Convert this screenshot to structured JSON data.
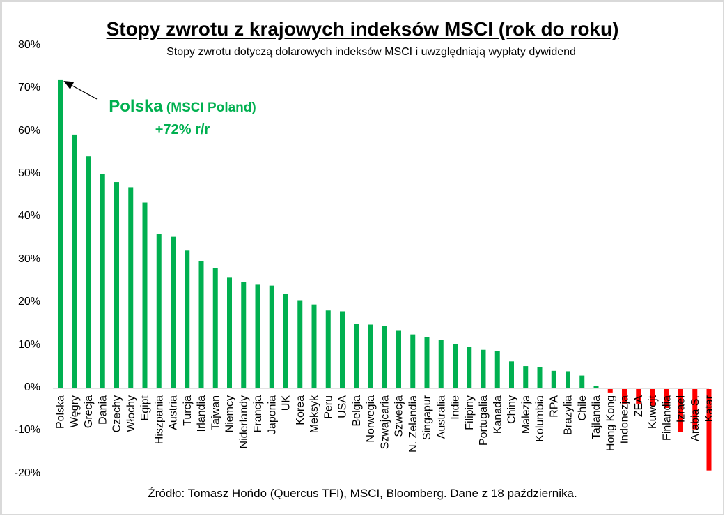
{
  "header": {
    "title": "Stopy zwrotu z krajowych indeksów MSCI (rok do roku)",
    "subtitle_pre": "Stopy zwrotu dotyczą ",
    "subtitle_underlined": "dolarowych",
    "subtitle_post": " indeksów MSCI i uwzględniają wypłaty dywidend"
  },
  "annotation": {
    "name": "Polska",
    "detail": " (MSCI Poland)",
    "value": "+72% r/r"
  },
  "footer": {
    "source": "Źródło: Tomasz Hońdo (Quercus TFI), MSCI, Bloomberg. Dane z 18 października."
  },
  "colors": {
    "positive": "#00b050",
    "negative": "#ff0000",
    "axis": "#d9d9d9",
    "annotation": "#00b050"
  },
  "chart_data": {
    "type": "bar",
    "title": "Stopy zwrotu z krajowych indeksów MSCI (rok do roku)",
    "subtitle": "Stopy zwrotu dotyczą dolarowych indeksów MSCI i uwzględniają wypłaty dywidend",
    "xlabel": "",
    "ylabel": "",
    "ylim": [
      -20,
      80
    ],
    "yticks": [
      "80%",
      "70%",
      "60%",
      "50%",
      "40%",
      "30%",
      "20%",
      "10%",
      "0%",
      "-10%",
      "-20%"
    ],
    "grid": false,
    "legend": null,
    "annotations": [
      "Polska (MSCI Poland) +72% r/r"
    ],
    "categories": [
      "Polska",
      "Węgry",
      "Grecja",
      "Dania",
      "Czechy",
      "Włochy",
      "Egipt",
      "Hiszpania",
      "Austria",
      "Turcja",
      "Irlandia",
      "Tajwan",
      "Niemcy",
      "Niderlandy",
      "Francja",
      "Japonia",
      "UK",
      "Korea",
      "Meksyk",
      "Peru",
      "USA",
      "Belgia",
      "Norwegia",
      "Szwajcaria",
      "Szwecja",
      "N. Zelandia",
      "Singapur",
      "Australia",
      "Indie",
      "Filipiny",
      "Portugalia",
      "Kanada",
      "Chiny",
      "Malezja",
      "Kolumbia",
      "RPA",
      "Brazylia",
      "Chile",
      "Tajlandia",
      "Hong Kong",
      "Indonezja",
      "ZEA",
      "Kuwejt",
      "Finlandia",
      "Izrael",
      "Arabia S.",
      "Katar"
    ],
    "values": [
      72,
      59.3,
      54.2,
      50.1,
      48.2,
      47,
      43.4,
      36.1,
      35.4,
      32.2,
      29.8,
      28.1,
      26,
      24.9,
      24.2,
      24,
      22,
      20.6,
      19.6,
      18.2,
      18,
      15,
      14.9,
      14.5,
      13.6,
      12.6,
      12,
      11.4,
      10.4,
      9.7,
      9,
      8.7,
      6.3,
      5.2,
      5,
      4.1,
      4,
      3,
      0.6,
      -0.8,
      -3.4,
      -3.4,
      -3.9,
      -4.4,
      -10,
      -9.4,
      -19
    ]
  },
  "source": "Źródło: Tomasz Hońdo (Quercus TFI), MSCI, Bloomberg. Dane z 18 października."
}
